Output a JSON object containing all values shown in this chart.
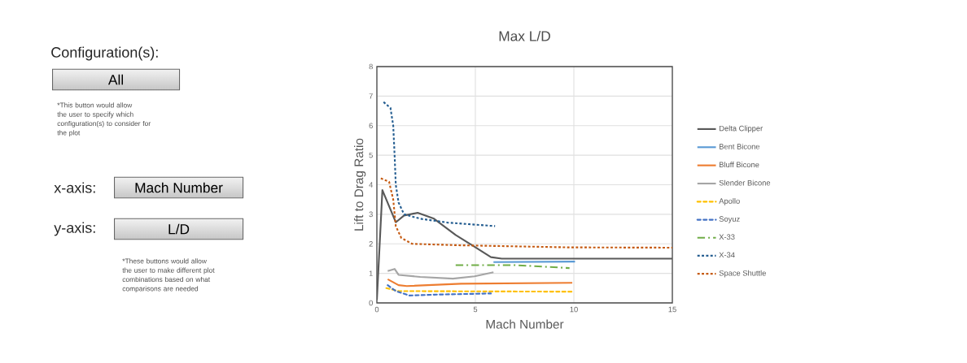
{
  "chart_data": {
    "type": "line",
    "title": "Max L/D",
    "xlabel": "Mach Number",
    "ylabel": "Lift to Drag Ratio",
    "xlim": [
      0,
      15
    ],
    "ylim": [
      0,
      8
    ],
    "xticks": [
      0,
      5,
      10,
      15
    ],
    "yticks": [
      0,
      1,
      2,
      3,
      4,
      5,
      6,
      7,
      8
    ],
    "grid": true,
    "legend": "right",
    "marker": "none",
    "series": [
      {
        "name": "Delta Clipper",
        "color": "#595959",
        "line_style": "solid",
        "x": [
          0,
          0.28,
          0.96,
          1.38,
          2.07,
          2.9,
          4.0,
          4.96,
          5.79,
          6.34,
          15
        ],
        "values": [
          0.1,
          3.82,
          2.73,
          2.96,
          3.05,
          2.85,
          2.3,
          1.9,
          1.55,
          1.5,
          1.5
        ]
      },
      {
        "name": "Bent Bicone",
        "color": "#5b9bd5",
        "line_style": "solid",
        "x": [
          5.92,
          10.06
        ],
        "values": [
          1.38,
          1.4
        ]
      },
      {
        "name": "Bluff Bicone",
        "color": "#ed7d31",
        "line_style": "solid",
        "x": [
          0.55,
          1.1,
          1.52,
          4.27,
          9.92
        ],
        "values": [
          0.8,
          0.6,
          0.57,
          0.65,
          0.68
        ]
      },
      {
        "name": "Slender Bicone",
        "color": "#a5a5a5",
        "line_style": "solid",
        "x": [
          0.55,
          0.9,
          1.1,
          2.2,
          3.86,
          4.96,
          5.92
        ],
        "values": [
          1.08,
          1.15,
          0.95,
          0.88,
          0.82,
          0.9,
          1.04
        ]
      },
      {
        "name": "Apollo",
        "color": "#ffc000",
        "line_style": "dashed",
        "x": [
          0.48,
          1.1,
          9.92
        ],
        "values": [
          0.5,
          0.4,
          0.38
        ]
      },
      {
        "name": "Soyuz",
        "color": "#4472c4",
        "line_style": "dashed",
        "x": [
          0.55,
          0.96,
          1.65,
          2.9,
          5.79
        ],
        "values": [
          0.6,
          0.4,
          0.25,
          0.28,
          0.32
        ]
      },
      {
        "name": "X-33",
        "color": "#70ad47",
        "line_style": "dashdot",
        "x": [
          4.0,
          7.0,
          9.78
        ],
        "values": [
          1.28,
          1.28,
          1.18
        ]
      },
      {
        "name": "X-34",
        "color": "#255e91",
        "line_style": "dotted",
        "x": [
          0.34,
          0.69,
          0.83,
          0.9,
          0.96,
          1.1,
          1.38,
          2.2,
          3.58,
          6.0
        ],
        "values": [
          6.8,
          6.6,
          6.0,
          5.0,
          4.0,
          3.4,
          3.0,
          2.85,
          2.72,
          2.6
        ]
      },
      {
        "name": "Space Shuttle",
        "color": "#c55a11",
        "line_style": "dotted",
        "x": [
          0.2,
          0.62,
          0.83,
          0.96,
          1.24,
          1.79,
          4.27,
          9.78,
          15
        ],
        "values": [
          4.22,
          4.1,
          3.5,
          2.6,
          2.2,
          2.0,
          1.95,
          1.88,
          1.87
        ]
      }
    ],
    "annotations": [
      "Configuration(s):",
      "All",
      "*This button would allow the user to specify which configuration(s) to consider for the plot",
      "x-axis:",
      "Mach Number",
      "y-axis:",
      "L/D",
      "*These buttons would allow the user to make different plot combinations based on what comparisons are needed"
    ]
  }
}
